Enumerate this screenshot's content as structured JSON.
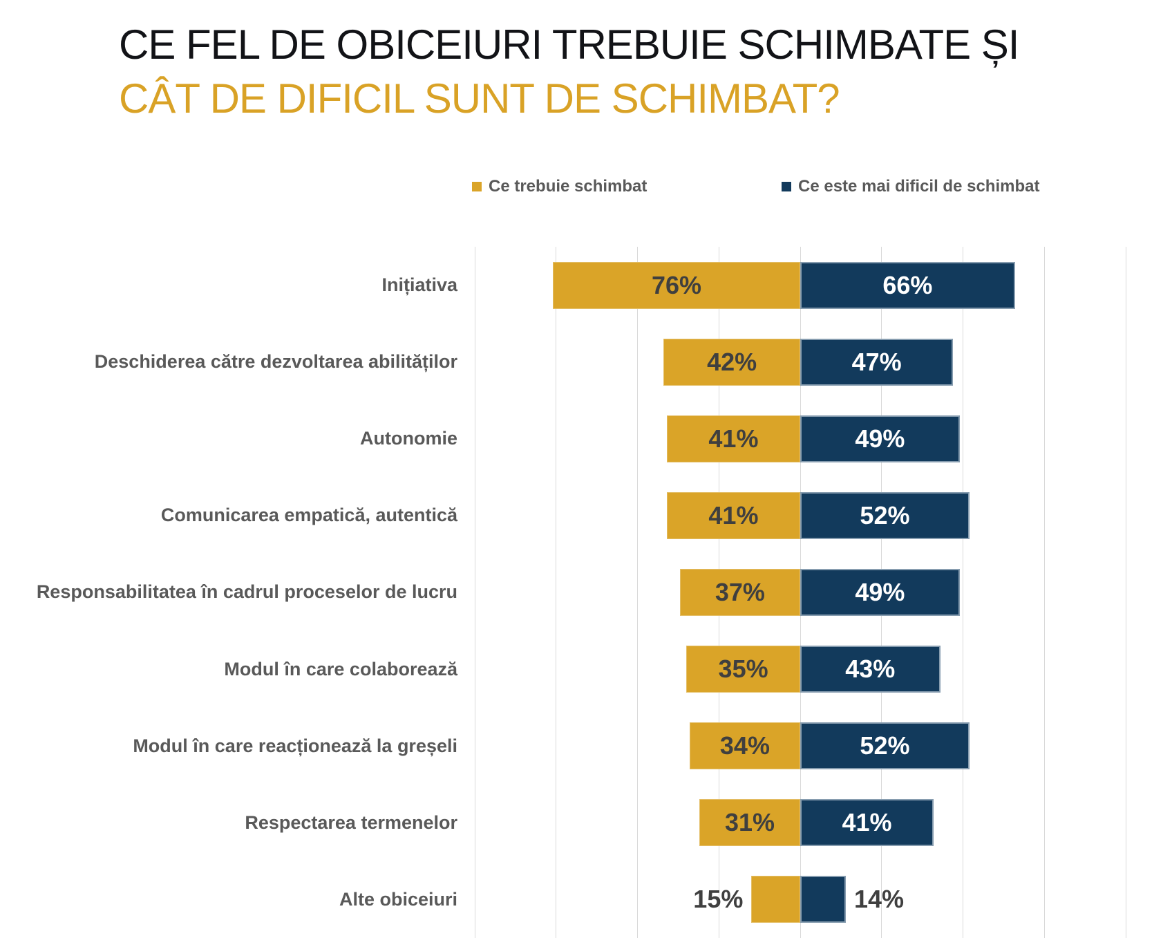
{
  "title": {
    "line1": "CE FEL DE OBICEIURI TREBUIE SCHIMBATE ȘI",
    "line2": "CÂT DE DIFICIL SUNT DE SCHIMBAT?",
    "line1_color": "#121317",
    "line2_color": "#D9A226"
  },
  "legend": {
    "items": [
      {
        "label": "Ce trebuie schimbat",
        "color": "#DAA428"
      },
      {
        "label": "Ce este mai dificil de schimbat",
        "color": "#123A5C"
      }
    ],
    "position": "top"
  },
  "colors": {
    "gold": "#DAA428",
    "navy": "#123A5C",
    "gridline": "#D9D9D9",
    "category_label": "#595959",
    "value_label_dark": "#3F3F3F",
    "value_label_light": "#FFFFFF"
  },
  "chart_data": {
    "type": "bar",
    "orientation": "horizontal-diverging",
    "title": "CE FEL DE OBICEIURI TREBUIE SCHIMBATE ȘI CÂT DE DIFICIL SUNT DE SCHIMBAT?",
    "categories": [
      "Inițiativa",
      "Deschiderea către dezvoltarea abilităților",
      "Autonomie",
      "Comunicarea empatică, autentică",
      "Responsabilitatea în cadrul proceselor de lucru",
      "Modul în care colaborează",
      "Modul în care reacționează la greșeli",
      "Respectarea termenelor",
      "Alte obiceiuri"
    ],
    "series": [
      {
        "name": "Ce trebuie schimbat",
        "side": "left",
        "color": "#DAA428",
        "label_color": "#3F3F3F",
        "values": [
          76,
          42,
          41,
          41,
          37,
          35,
          34,
          31,
          15
        ]
      },
      {
        "name": "Ce este mai dificil de schimbat",
        "side": "right",
        "color": "#123A5C",
        "label_color": "#FFFFFF",
        "values": [
          66,
          47,
          49,
          52,
          49,
          43,
          52,
          41,
          14
        ]
      }
    ],
    "value_suffix": "%",
    "xlim": [
      -100,
      100
    ],
    "grid_step": 25,
    "grid": true,
    "legend_position": "top",
    "value_labels": "inside (outside when bar shorter than ~20%)"
  }
}
